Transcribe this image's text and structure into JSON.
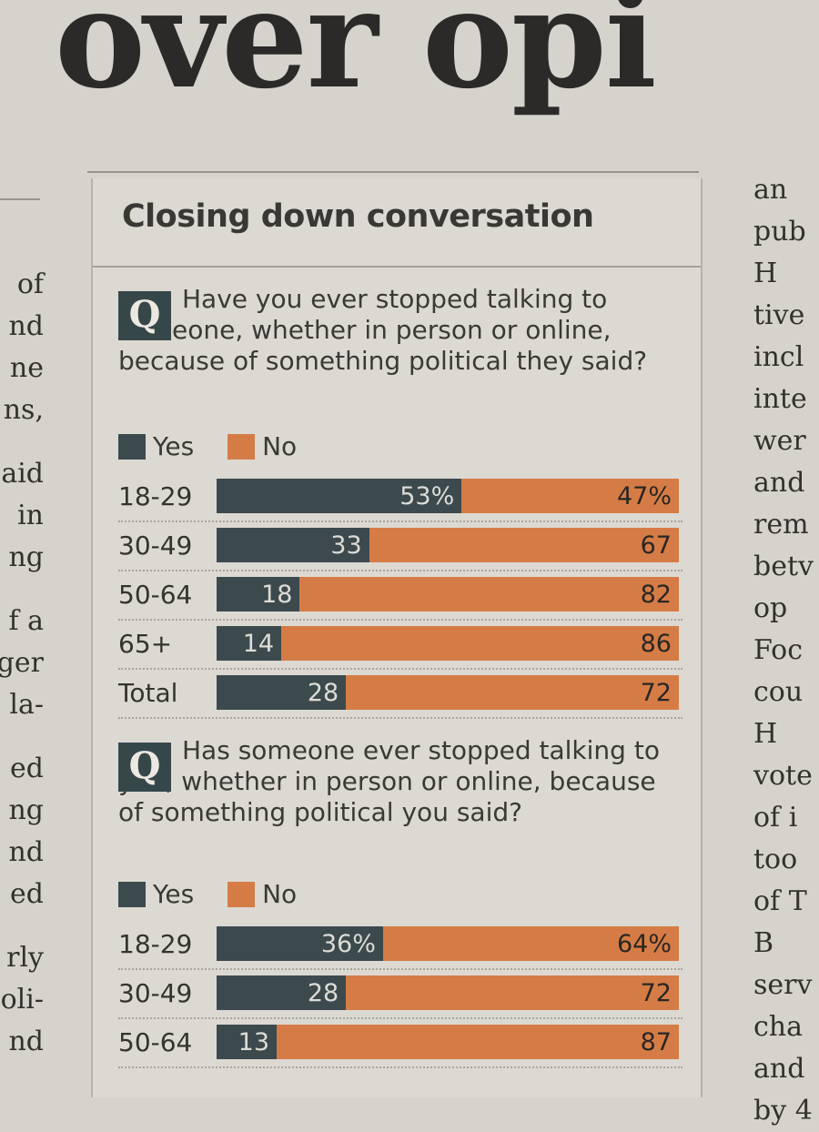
{
  "headline": "over opi",
  "article_left_lines": [
    "of",
    "nd",
    "ne",
    "ns,",
    "",
    "aid",
    "in",
    "ng",
    "",
    "f a",
    "ger",
    "la-",
    "",
    "ed",
    "ng",
    "nd",
    "ed",
    "",
    "rly",
    "oli-",
    "nd"
  ],
  "article_right_lines": [
    "an",
    "pub",
    "H",
    "tive",
    "incl",
    "inte",
    "wer",
    "and",
    "rem",
    "betv",
    "op",
    "Foc",
    "cou",
    "H",
    "vote",
    "of i",
    "too",
    "of T",
    "B",
    "serv",
    "cha",
    "and",
    "by 4"
  ],
  "panel": {
    "title": "Closing down conversation",
    "badge": "Q"
  },
  "colors": {
    "yes": "#3c4a4e",
    "no": "#d57c46"
  },
  "chart_data": [
    {
      "type": "bar",
      "orientation": "horizontal",
      "stacked": true,
      "question": "Have you ever stopped talking to someone, whether in person or online, because of something political they said?",
      "legend": [
        "Yes",
        "No"
      ],
      "categories": [
        "18-29",
        "30-49",
        "50-64",
        "65+",
        "Total"
      ],
      "series": [
        {
          "name": "Yes",
          "values": [
            53,
            33,
            18,
            14,
            28
          ],
          "labels": [
            "53%",
            "33",
            "18",
            "14",
            "28"
          ]
        },
        {
          "name": "No",
          "values": [
            47,
            67,
            82,
            86,
            72
          ],
          "labels": [
            "47%",
            "67",
            "82",
            "86",
            "72"
          ]
        }
      ],
      "xlim": [
        0,
        100
      ]
    },
    {
      "type": "bar",
      "orientation": "horizontal",
      "stacked": true,
      "question": "Has someone ever stopped talking to you, whether in person or online, because of something political you said?",
      "legend": [
        "Yes",
        "No"
      ],
      "categories": [
        "18-29",
        "30-49",
        "50-64"
      ],
      "series": [
        {
          "name": "Yes",
          "values": [
            36,
            28,
            13
          ],
          "labels": [
            "36%",
            "28",
            "13"
          ]
        },
        {
          "name": "No",
          "values": [
            64,
            72,
            87
          ],
          "labels": [
            "64%",
            "72",
            "87"
          ]
        }
      ],
      "xlim": [
        0,
        100
      ]
    }
  ]
}
